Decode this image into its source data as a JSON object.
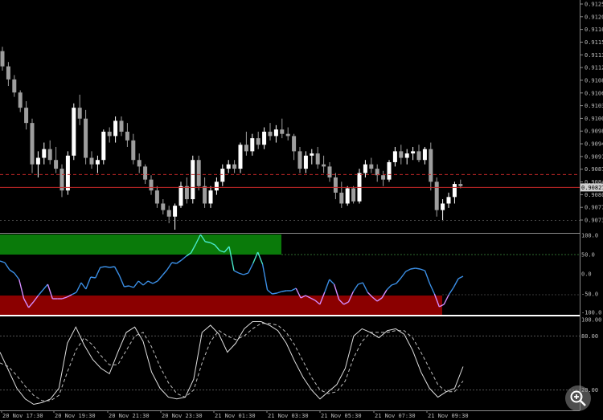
{
  "price_axis": {
    "labels": [
      "0.91250",
      "0.91205",
      "0.91160",
      "0.91150",
      "0.91135",
      "0.91120",
      "0.91085",
      "0.91060",
      "0.91035",
      "0.91005",
      "0.90985",
      "0.90945",
      "0.90910",
      "0.90875",
      "0.90845",
      "0.90805",
      "0.90770",
      "0.90735"
    ],
    "current_price": "0.90827"
  },
  "rsi_axis": {
    "labels": [
      "100.0",
      "50.0",
      "0.0",
      "-50.0",
      "-100.0"
    ]
  },
  "stoch_axis": {
    "labels": [
      "100.00",
      "80.00",
      "20.00"
    ]
  },
  "time_axis": {
    "labels": [
      "20 Nov 17:30",
      "20 Nov 19:30",
      "20 Nov 21:30",
      "20 Nov 23:30",
      "21 Nov 01:30",
      "21 Nov 03:30",
      "21 Nov 05:30",
      "21 Nov 07:30",
      "21 Nov 09:30"
    ]
  },
  "colors": {
    "bull": "#ffffff",
    "bear": "#9e9e9e",
    "bid_line": "#c62828",
    "upper_zone": "#0a7a0a",
    "lower_zone": "#8b0000",
    "cci_line": "#3b8fe6",
    "cci_high": "#48e8c8",
    "cci_low": "#d58cff"
  },
  "candles": [
    [
      0.9114,
      0.9115,
      0.91095,
      0.91105
    ],
    [
      0.91105,
      0.91115,
      0.9106,
      0.91075
    ],
    [
      0.91075,
      0.91085,
      0.91035,
      0.91045
    ],
    [
      0.91045,
      0.9105,
      0.91,
      0.9101
    ],
    [
      0.9101,
      0.91025,
      0.9096,
      0.90975
    ],
    [
      0.90975,
      0.90985,
      0.9086,
      0.9088
    ],
    [
      0.9088,
      0.9091,
      0.9085,
      0.90895
    ],
    [
      0.90895,
      0.9093,
      0.9088,
      0.90915
    ],
    [
      0.90915,
      0.90935,
      0.9088,
      0.9089
    ],
    [
      0.9089,
      0.9092,
      0.9086,
      0.9087
    ],
    [
      0.9087,
      0.9088,
      0.90805,
      0.9082
    ],
    [
      0.9082,
      0.9091,
      0.9081,
      0.909
    ],
    [
      0.909,
      0.9102,
      0.9089,
      0.9101
    ],
    [
      0.9101,
      0.9104,
      0.9097,
      0.90985
    ],
    [
      0.90985,
      0.91005,
      0.9088,
      0.90895
    ],
    [
      0.90895,
      0.9091,
      0.9087,
      0.9088
    ],
    [
      0.9088,
      0.909,
      0.9086,
      0.9089
    ],
    [
      0.9089,
      0.9096,
      0.9088,
      0.90955
    ],
    [
      0.90955,
      0.90965,
      0.9093,
      0.90945
    ],
    [
      0.90945,
      0.9099,
      0.9093,
      0.9098
    ],
    [
      0.9098,
      0.9099,
      0.90945,
      0.90955
    ],
    [
      0.90955,
      0.90975,
      0.9092,
      0.90935
    ],
    [
      0.90935,
      0.9095,
      0.9088,
      0.9089
    ],
    [
      0.9089,
      0.90905,
      0.9086,
      0.90875
    ],
    [
      0.90875,
      0.9088,
      0.90835,
      0.90845
    ],
    [
      0.90845,
      0.90855,
      0.9081,
      0.9082
    ],
    [
      0.9082,
      0.9083,
      0.9078,
      0.9079
    ],
    [
      0.9079,
      0.908,
      0.90765,
      0.90775
    ],
    [
      0.90775,
      0.90785,
      0.90745,
      0.9076
    ],
    [
      0.9076,
      0.9079,
      0.9073,
      0.90785
    ],
    [
      0.90785,
      0.9084,
      0.9078,
      0.9083
    ],
    [
      0.9083,
      0.9085,
      0.9079,
      0.908
    ],
    [
      0.908,
      0.909,
      0.9079,
      0.9089
    ],
    [
      0.9089,
      0.909,
      0.9082,
      0.9083
    ],
    [
      0.9083,
      0.9085,
      0.9078,
      0.9079
    ],
    [
      0.9079,
      0.9083,
      0.9078,
      0.9082
    ],
    [
      0.9082,
      0.9085,
      0.9081,
      0.9084
    ],
    [
      0.9084,
      0.9088,
      0.9083,
      0.9087
    ],
    [
      0.9087,
      0.9089,
      0.9086,
      0.9088
    ],
    [
      0.9088,
      0.9089,
      0.9086,
      0.9087
    ],
    [
      0.9087,
      0.9093,
      0.9086,
      0.90925
    ],
    [
      0.90925,
      0.90955,
      0.909,
      0.9091
    ],
    [
      0.9091,
      0.9095,
      0.909,
      0.9094
    ],
    [
      0.9094,
      0.90955,
      0.90915,
      0.90925
    ],
    [
      0.90925,
      0.90965,
      0.90915,
      0.90955
    ],
    [
      0.90955,
      0.90975,
      0.90935,
      0.90945
    ],
    [
      0.90945,
      0.9097,
      0.9093,
      0.9096
    ],
    [
      0.9096,
      0.90985,
      0.9094,
      0.9095
    ],
    [
      0.9095,
      0.90965,
      0.90935,
      0.90945
    ],
    [
      0.90945,
      0.9095,
      0.9089,
      0.9091
    ],
    [
      0.9091,
      0.9092,
      0.9086,
      0.9087
    ],
    [
      0.9087,
      0.9091,
      0.9086,
      0.909
    ],
    [
      0.909,
      0.90915,
      0.9088,
      0.90905
    ],
    [
      0.90905,
      0.9092,
      0.9087,
      0.9088
    ],
    [
      0.9088,
      0.909,
      0.9086,
      0.90875
    ],
    [
      0.90875,
      0.90885,
      0.9084,
      0.9085
    ],
    [
      0.9085,
      0.9086,
      0.908,
      0.90815
    ],
    [
      0.90815,
      0.9084,
      0.9078,
      0.9079
    ],
    [
      0.9079,
      0.9083,
      0.90785,
      0.90825
    ],
    [
      0.90825,
      0.9083,
      0.9079,
      0.90795
    ],
    [
      0.90795,
      0.9087,
      0.9079,
      0.9086
    ],
    [
      0.9086,
      0.9089,
      0.9085,
      0.9088
    ],
    [
      0.9088,
      0.90895,
      0.9086,
      0.9087
    ],
    [
      0.9087,
      0.9088,
      0.9084,
      0.90855
    ],
    [
      0.90855,
      0.90865,
      0.9083,
      0.90845
    ],
    [
      0.90845,
      0.9089,
      0.9084,
      0.90885
    ],
    [
      0.90885,
      0.9092,
      0.90875,
      0.9091
    ],
    [
      0.9091,
      0.90925,
      0.9088,
      0.90895
    ],
    [
      0.90895,
      0.90915,
      0.9088,
      0.90905
    ],
    [
      0.90905,
      0.9092,
      0.9089,
      0.9091
    ],
    [
      0.9091,
      0.90925,
      0.90885,
      0.9089
    ],
    [
      0.9089,
      0.9092,
      0.9088,
      0.90915
    ],
    [
      0.90915,
      0.9093,
      0.9082,
      0.9084
    ],
    [
      0.9084,
      0.9085,
      0.9076,
      0.90775
    ],
    [
      0.90775,
      0.908,
      0.9075,
      0.9079
    ],
    [
      0.9079,
      0.90815,
      0.9078,
      0.90805
    ],
    [
      0.90805,
      0.9084,
      0.9079,
      0.90835
    ],
    [
      0.90835,
      0.90845,
      0.90825,
      0.9083
    ]
  ],
  "cci": [
    34,
    30,
    12,
    4,
    -12,
    -60,
    -82,
    -68,
    -52,
    -38,
    -24,
    -60,
    -60,
    -60,
    -56,
    -50,
    -44,
    -20,
    -36,
    -6,
    -8,
    18,
    20,
    18,
    20,
    -2,
    -30,
    -28,
    -32,
    -16,
    -26,
    -16,
    -22,
    -16,
    -2,
    12,
    30,
    28,
    36,
    46,
    54,
    76,
    100,
    82,
    80,
    74,
    60,
    56,
    70,
    10,
    4,
    0,
    4,
    28,
    56,
    26,
    -38,
    -48,
    -46,
    -42,
    -40,
    -40,
    -34,
    -58,
    -52,
    -58,
    -64,
    -74,
    -44,
    -12,
    -24,
    -62,
    -74,
    -68,
    -42,
    -24,
    -20,
    -44,
    -56,
    -66,
    -58,
    -38,
    -26,
    -22,
    -8,
    8,
    14,
    16,
    14,
    10,
    -22,
    -48,
    -80,
    -74,
    -50,
    -32,
    -10,
    -4
  ],
  "stoch_main": [
    62,
    42,
    22,
    10,
    4,
    6,
    10,
    22,
    72,
    90,
    70,
    54,
    44,
    38,
    62,
    84,
    90,
    74,
    40,
    22,
    12,
    10,
    12,
    32,
    84,
    92,
    82,
    62,
    72,
    88,
    96,
    96,
    92,
    86,
    72,
    52,
    34,
    20,
    10,
    18,
    26,
    44,
    80,
    88,
    84,
    78,
    86,
    88,
    82,
    64,
    40,
    22,
    12,
    18,
    22,
    46
  ],
  "stoch_signal": [
    50,
    46,
    36,
    24,
    14,
    8,
    8,
    14,
    40,
    64,
    78,
    70,
    58,
    48,
    48,
    64,
    80,
    84,
    68,
    46,
    28,
    16,
    12,
    20,
    50,
    74,
    86,
    80,
    76,
    80,
    88,
    94,
    94,
    92,
    84,
    70,
    52,
    34,
    20,
    16,
    18,
    30,
    56,
    74,
    84,
    84,
    84,
    86,
    86,
    78,
    62,
    44,
    26,
    18,
    18,
    30
  ],
  "zoom": {
    "icon": "zoom-in-icon"
  }
}
